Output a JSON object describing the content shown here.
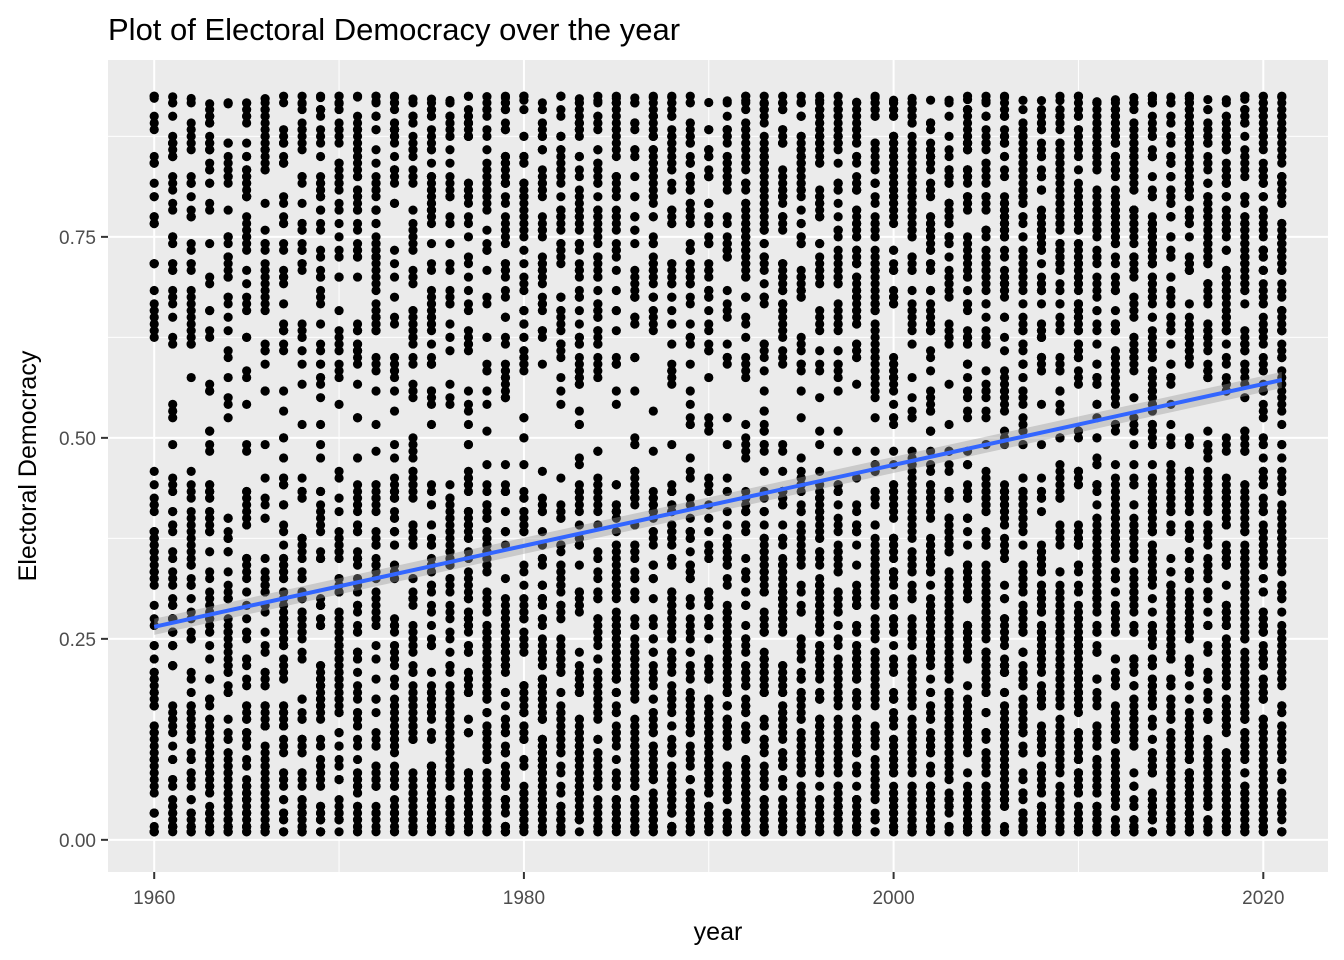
{
  "chart_data": {
    "type": "scatter",
    "title": "Plot of Electoral Democracy over the year",
    "xlabel": "year",
    "ylabel": "Electoral Democracy",
    "xlim": [
      1957.5,
      2023.5
    ],
    "ylim": [
      -0.04,
      0.97
    ],
    "x_ticks": [
      1960,
      1980,
      2000,
      2020
    ],
    "x_tick_labels": [
      "1960",
      "1980",
      "2000",
      "2020"
    ],
    "y_ticks": [
      0.0,
      0.25,
      0.5,
      0.75
    ],
    "y_tick_labels": [
      "0.00",
      "0.25",
      "0.50",
      "0.75"
    ],
    "x_range": [
      1960,
      2021
    ],
    "y_range": [
      0.01,
      0.925
    ],
    "trend_line": {
      "method": "linear",
      "x": [
        1960,
        2021
      ],
      "y": [
        0.265,
        0.572
      ],
      "color": "#3366FF"
    },
    "grid": true,
    "panel_background": "#EBEBEB",
    "point_color": "#000000",
    "legend": "none"
  }
}
